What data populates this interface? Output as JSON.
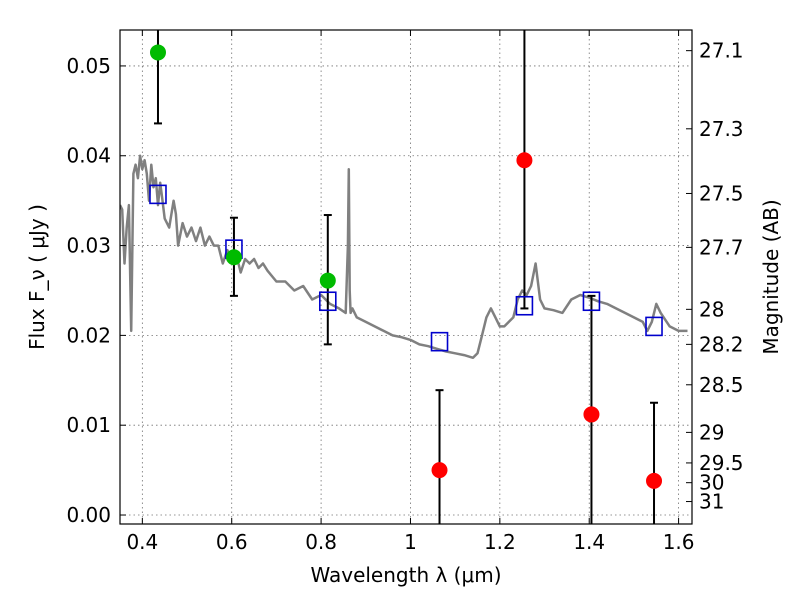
{
  "chart_data": {
    "type": "scatter",
    "xlabel": "Wavelength  λ (μm)",
    "ylabel": "Flux  F_ν  ( μJy )",
    "y2label": "Magnitude (AB)",
    "xlim": [
      0.35,
      1.63
    ],
    "ylim": [
      -0.001,
      0.054
    ],
    "grid": true,
    "x_ticks": [
      0.4,
      0.6,
      0.8,
      1.0,
      1.2,
      1.4,
      1.6
    ],
    "x_tick_labels": [
      "0.4",
      "0.6",
      "0.8",
      "1",
      "1.2",
      "1.4",
      "1.6"
    ],
    "y_ticks": [
      0.0,
      0.01,
      0.02,
      0.03,
      0.04,
      0.05
    ],
    "y_tick_labels": [
      "0.00",
      "0.01",
      "0.02",
      "0.03",
      "0.04",
      "0.05"
    ],
    "y2_ticks": [
      {
        "label": "27.1",
        "flux": 0.0517
      },
      {
        "label": "27.3",
        "flux": 0.043
      },
      {
        "label": "27.5",
        "flux": 0.0358
      },
      {
        "label": "27.7",
        "flux": 0.0298
      },
      {
        "label": "28",
        "flux": 0.0229
      },
      {
        "label": "28.2",
        "flux": 0.019
      },
      {
        "label": "28.5",
        "flux": 0.0145
      },
      {
        "label": "29",
        "flux": 0.0092
      },
      {
        "label": "29.5",
        "flux": 0.0058
      },
      {
        "label": "30",
        "flux": 0.0036
      },
      {
        "label": "31",
        "flux": 0.0015
      }
    ],
    "colors": {
      "model": "#808080",
      "model_points": "#0000cc",
      "detections": "#00bb00",
      "upper_limits": "#ff0000"
    },
    "series": [
      {
        "type": "line",
        "color": "#808080",
        "x": [
          0.35,
          0.355,
          0.36,
          0.365,
          0.37,
          0.375,
          0.38,
          0.385,
          0.39,
          0.395,
          0.4,
          0.405,
          0.41,
          0.415,
          0.42,
          0.425,
          0.43,
          0.435,
          0.44,
          0.445,
          0.45,
          0.46,
          0.47,
          0.475,
          0.48,
          0.49,
          0.5,
          0.51,
          0.52,
          0.53,
          0.54,
          0.55,
          0.56,
          0.57,
          0.58,
          0.59,
          0.6,
          0.61,
          0.62,
          0.63,
          0.64,
          0.65,
          0.66,
          0.67,
          0.68,
          0.7,
          0.72,
          0.74,
          0.76,
          0.78,
          0.8,
          0.82,
          0.84,
          0.855,
          0.86,
          0.862,
          0.864,
          0.866,
          0.87,
          0.88,
          0.9,
          0.92,
          0.94,
          0.96,
          0.98,
          1.0,
          1.02,
          1.04,
          1.06,
          1.08,
          1.1,
          1.12,
          1.14,
          1.15,
          1.16,
          1.17,
          1.18,
          1.19,
          1.2,
          1.21,
          1.22,
          1.23,
          1.24,
          1.25,
          1.26,
          1.27,
          1.28,
          1.29,
          1.3,
          1.32,
          1.34,
          1.36,
          1.38,
          1.4,
          1.42,
          1.44,
          1.46,
          1.48,
          1.5,
          1.52,
          1.53,
          1.54,
          1.55,
          1.56,
          1.58,
          1.6,
          1.62
        ],
        "y": [
          0.0345,
          0.034,
          0.028,
          0.032,
          0.0345,
          0.0205,
          0.038,
          0.039,
          0.0375,
          0.04,
          0.0385,
          0.0395,
          0.038,
          0.035,
          0.039,
          0.0365,
          0.0375,
          0.0345,
          0.037,
          0.035,
          0.033,
          0.032,
          0.035,
          0.0335,
          0.03,
          0.0325,
          0.031,
          0.032,
          0.0305,
          0.032,
          0.03,
          0.031,
          0.03,
          0.03,
          0.028,
          0.0295,
          0.0285,
          0.029,
          0.027,
          0.0285,
          0.028,
          0.0285,
          0.0275,
          0.028,
          0.0272,
          0.026,
          0.026,
          0.025,
          0.0255,
          0.024,
          0.0245,
          0.0235,
          0.023,
          0.0225,
          0.03,
          0.0385,
          0.025,
          0.0225,
          0.023,
          0.022,
          0.0215,
          0.021,
          0.0205,
          0.02,
          0.0198,
          0.0195,
          0.019,
          0.0188,
          0.0185,
          0.0182,
          0.018,
          0.0178,
          0.0175,
          0.018,
          0.02,
          0.022,
          0.023,
          0.022,
          0.021,
          0.021,
          0.0215,
          0.022,
          0.024,
          0.025,
          0.0245,
          0.0255,
          0.028,
          0.024,
          0.023,
          0.0228,
          0.0225,
          0.024,
          0.0245,
          0.0242,
          0.0238,
          0.0235,
          0.023,
          0.0225,
          0.022,
          0.0215,
          0.0205,
          0.0215,
          0.0235,
          0.0225,
          0.021,
          0.0205,
          0.0205
        ]
      },
      {
        "type": "model_points",
        "marker": "square",
        "color": "#0000cc",
        "x": [
          0.435,
          0.605,
          0.815,
          1.065,
          1.255,
          1.405,
          1.545
        ],
        "y": [
          0.0357,
          0.0296,
          0.0238,
          0.0193,
          0.0233,
          0.0238,
          0.021
        ]
      },
      {
        "type": "detections",
        "marker": "circle",
        "color": "#00bb00",
        "x": [
          0.435,
          0.605,
          0.815
        ],
        "y": [
          0.0515,
          0.0287,
          0.0261
        ],
        "yerr_low": [
          0.0436,
          0.0244,
          0.019
        ],
        "yerr_high": [
          0.063,
          0.0331,
          0.0334
        ]
      },
      {
        "type": "upper_limits",
        "marker": "circle",
        "color": "#ff0000",
        "x": [
          1.065,
          1.255,
          1.405,
          1.545
        ],
        "y": [
          0.005,
          0.0395,
          0.0112,
          0.0038
        ],
        "yerr_low": [
          -0.002,
          0.023,
          -0.002,
          -0.002
        ],
        "yerr_high": [
          0.0139,
          0.056,
          0.0244,
          0.0125
        ]
      }
    ]
  }
}
